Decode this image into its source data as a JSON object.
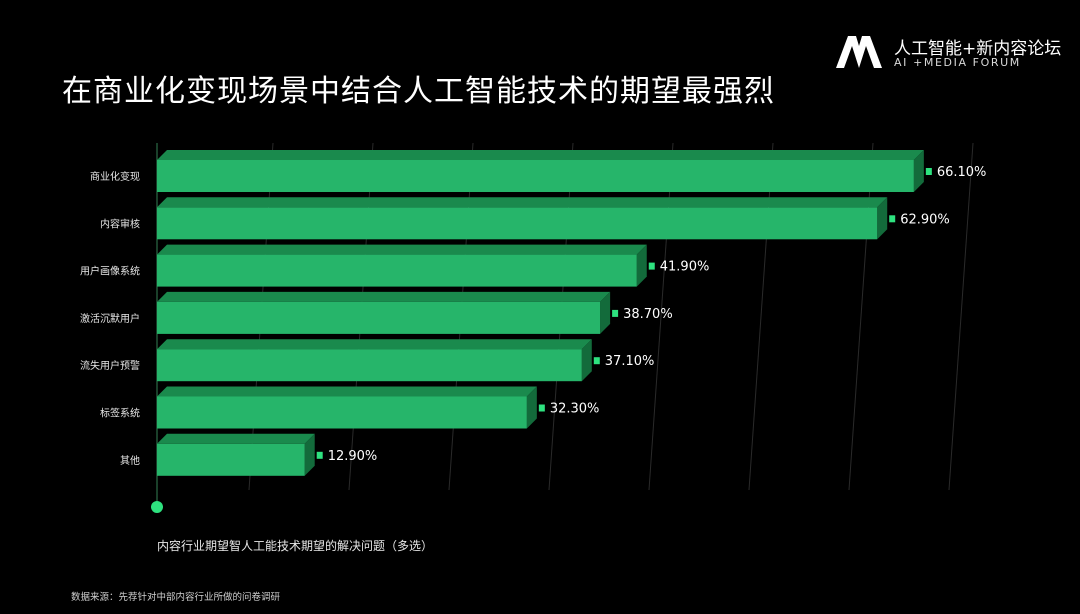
{
  "header": {
    "title": "在商业化变现场景中结合人工智能技术的期望最强烈",
    "brand_cn": "人工智能+新内容论坛",
    "brand_en": "AI +MEDIA FORUM"
  },
  "footer": {
    "caption": "内容行业期望智人工能技术期望的解决问题（多选）",
    "source": "数据来源：先荐针对中部内容行业所做的问卷调研"
  },
  "colors": {
    "bar_front": "#26b56a",
    "bar_top": "#1a8a4d",
    "bar_side": "#136b3b",
    "axis_dot": "#2ee27f",
    "background": "#000000"
  },
  "chart_data": {
    "type": "bar",
    "orientation": "horizontal",
    "categories": [
      "商业化变现",
      "内容审核",
      "用户画像系统",
      "激活沉默用户",
      "流失用户预警",
      "标签系统",
      "其他"
    ],
    "values": [
      66.1,
      62.9,
      41.9,
      38.7,
      37.1,
      32.3,
      12.9
    ],
    "value_labels": [
      "66.10%",
      "62.90%",
      "41.90%",
      "38.70%",
      "37.10%",
      "32.30%",
      "12.90%"
    ],
    "xlim": [
      0,
      100
    ],
    "grid": true,
    "legend": "none"
  }
}
